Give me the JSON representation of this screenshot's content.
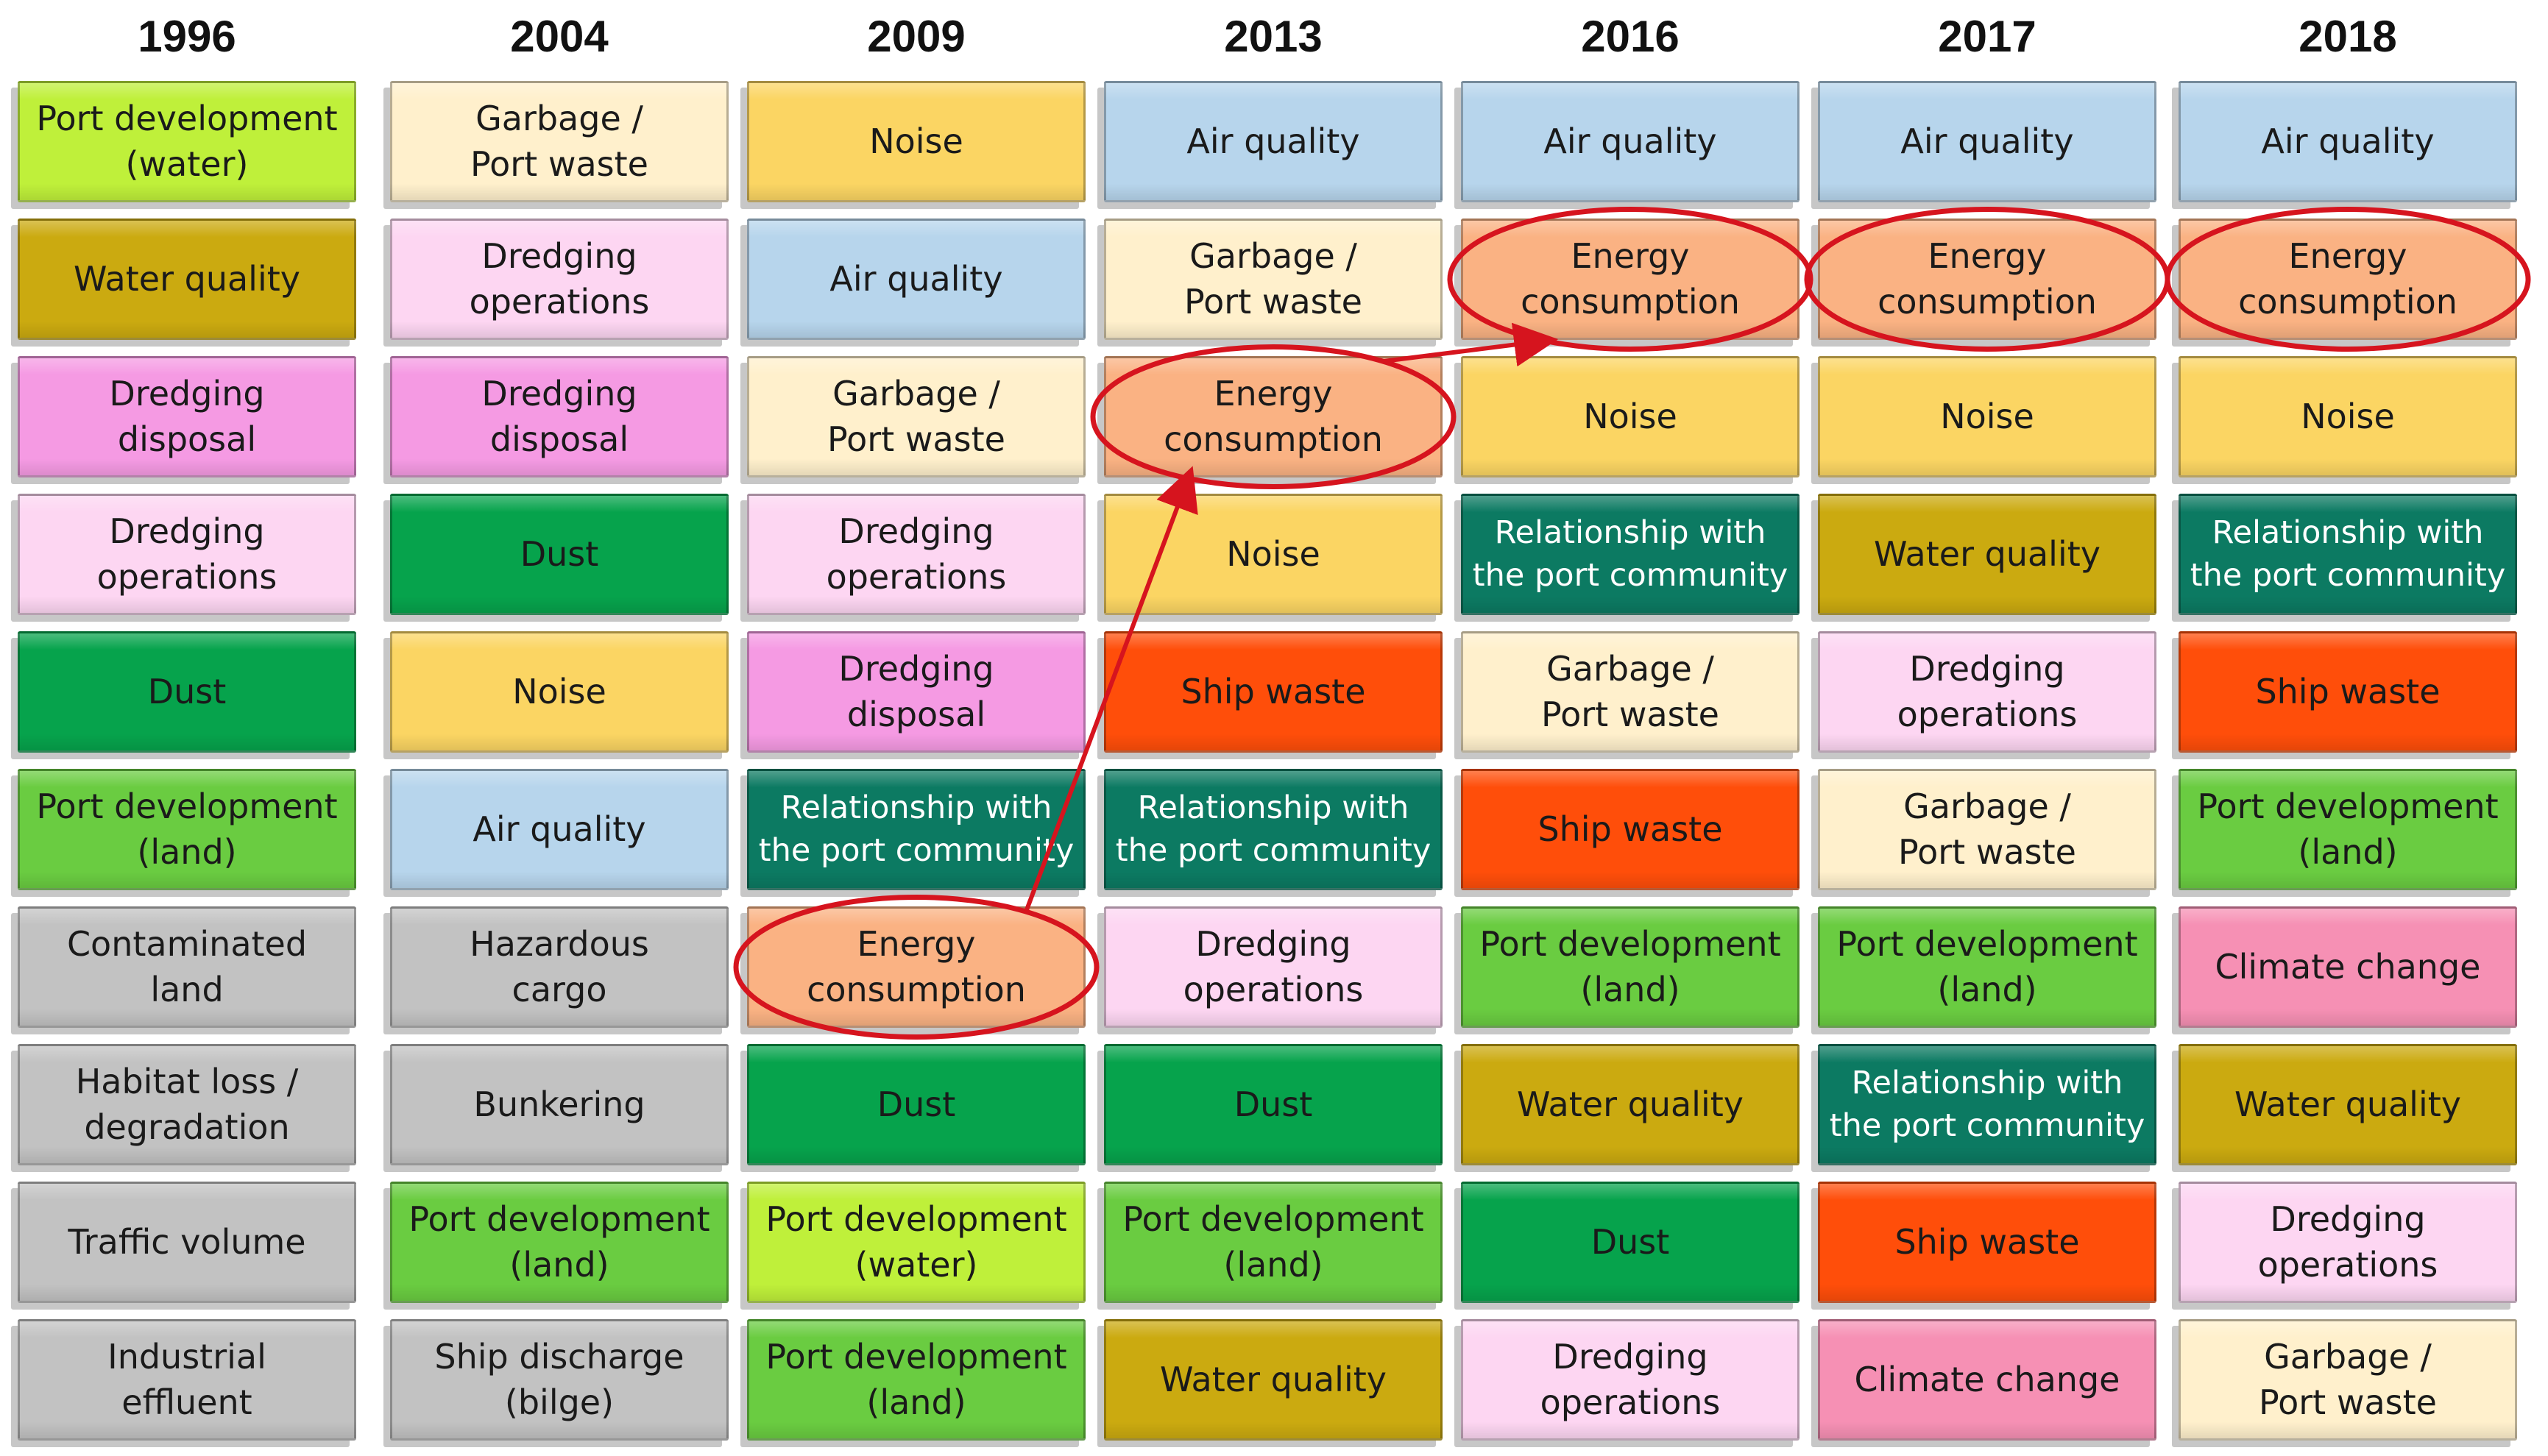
{
  "colors": {
    "air_quality": "#B7D5EC",
    "garbage_port_waste": "#FFF0CC",
    "noise": "#FBD563",
    "dredging_operations": "#FDD6F2",
    "dredging_disposal": "#F59AE3",
    "dust": "#06A34C",
    "relationship": "#0C7A62",
    "ship_waste": "#FF4E0A",
    "energy_consumption": "#FAB283",
    "port_dev_water": "#BFF03A",
    "port_dev_land": "#6ACC41",
    "water_quality": "#CBAA10",
    "grey": "#C2C2C2",
    "climate_change": "#F690B4",
    "highlight": "#D6141E"
  },
  "columns": [
    {
      "year": "1996",
      "items": [
        {
          "label": "Port development\n(water)",
          "color": "port_dev_water"
        },
        {
          "label": "Water quality",
          "color": "water_quality"
        },
        {
          "label": "Dredging\ndisposal",
          "color": "dredging_disposal"
        },
        {
          "label": "Dredging\noperations",
          "color": "dredging_operations"
        },
        {
          "label": "Dust",
          "color": "dust"
        },
        {
          "label": "Port development\n(land)",
          "color": "port_dev_land"
        },
        {
          "label": "Contaminated\nland",
          "color": "grey"
        },
        {
          "label": "Habitat loss /\ndegradation",
          "color": "grey"
        },
        {
          "label": "Traffic volume",
          "color": "grey"
        },
        {
          "label": "Industrial\neffluent",
          "color": "grey"
        }
      ]
    },
    {
      "year": "2004",
      "items": [
        {
          "label": "Garbage /\nPort waste",
          "color": "garbage_port_waste"
        },
        {
          "label": "Dredging\noperations",
          "color": "dredging_operations"
        },
        {
          "label": "Dredging\ndisposal",
          "color": "dredging_disposal"
        },
        {
          "label": "Dust",
          "color": "dust"
        },
        {
          "label": "Noise",
          "color": "noise"
        },
        {
          "label": "Air quality",
          "color": "air_quality"
        },
        {
          "label": "Hazardous\ncargo",
          "color": "grey"
        },
        {
          "label": "Bunkering",
          "color": "grey"
        },
        {
          "label": "Port development\n(land)",
          "color": "port_dev_land"
        },
        {
          "label": "Ship discharge\n(bilge)",
          "color": "grey"
        }
      ]
    },
    {
      "year": "2009",
      "items": [
        {
          "label": "Noise",
          "color": "noise"
        },
        {
          "label": "Air quality",
          "color": "air_quality"
        },
        {
          "label": "Garbage /\nPort waste",
          "color": "garbage_port_waste"
        },
        {
          "label": "Dredging\noperations",
          "color": "dredging_operations"
        },
        {
          "label": "Dredging\ndisposal",
          "color": "dredging_disposal"
        },
        {
          "label": "Relationship with\nthe port community",
          "color": "relationship"
        },
        {
          "label": "Energy\nconsumption",
          "color": "energy_consumption"
        },
        {
          "label": "Dust",
          "color": "dust"
        },
        {
          "label": "Port development\n(water)",
          "color": "port_dev_water"
        },
        {
          "label": "Port development\n(land)",
          "color": "port_dev_land"
        }
      ]
    },
    {
      "year": "2013",
      "items": [
        {
          "label": "Air quality",
          "color": "air_quality"
        },
        {
          "label": "Garbage /\nPort waste",
          "color": "garbage_port_waste"
        },
        {
          "label": "Energy\nconsumption",
          "color": "energy_consumption"
        },
        {
          "label": "Noise",
          "color": "noise"
        },
        {
          "label": "Ship waste",
          "color": "ship_waste"
        },
        {
          "label": "Relationship with\nthe port community",
          "color": "relationship"
        },
        {
          "label": "Dredging\noperations",
          "color": "dredging_operations"
        },
        {
          "label": "Dust",
          "color": "dust"
        },
        {
          "label": "Port development\n(land)",
          "color": "port_dev_land"
        },
        {
          "label": "Water quality",
          "color": "water_quality"
        }
      ]
    },
    {
      "year": "2016",
      "items": [
        {
          "label": "Air quality",
          "color": "air_quality"
        },
        {
          "label": "Energy\nconsumption",
          "color": "energy_consumption"
        },
        {
          "label": "Noise",
          "color": "noise"
        },
        {
          "label": "Relationship with\nthe port community",
          "color": "relationship"
        },
        {
          "label": "Garbage /\nPort waste",
          "color": "garbage_port_waste"
        },
        {
          "label": "Ship waste",
          "color": "ship_waste"
        },
        {
          "label": "Port development\n(land)",
          "color": "port_dev_land"
        },
        {
          "label": "Water quality",
          "color": "water_quality"
        },
        {
          "label": "Dust",
          "color": "dust"
        },
        {
          "label": "Dredging\noperations",
          "color": "dredging_operations"
        }
      ]
    },
    {
      "year": "2017",
      "items": [
        {
          "label": "Air quality",
          "color": "air_quality"
        },
        {
          "label": "Energy\nconsumption",
          "color": "energy_consumption"
        },
        {
          "label": "Noise",
          "color": "noise"
        },
        {
          "label": "Water quality",
          "color": "water_quality"
        },
        {
          "label": "Dredging\noperations",
          "color": "dredging_operations"
        },
        {
          "label": "Garbage /\nPort waste",
          "color": "garbage_port_waste"
        },
        {
          "label": "Port development\n(land)",
          "color": "port_dev_land"
        },
        {
          "label": "Relationship with\nthe port community",
          "color": "relationship"
        },
        {
          "label": "Ship waste",
          "color": "ship_waste"
        },
        {
          "label": "Climate change",
          "color": "climate_change"
        }
      ]
    },
    {
      "year": "2018",
      "items": [
        {
          "label": "Air quality",
          "color": "air_quality"
        },
        {
          "label": "Energy\nconsumption",
          "color": "energy_consumption"
        },
        {
          "label": "Noise",
          "color": "noise"
        },
        {
          "label": "Relationship with\nthe port community",
          "color": "relationship"
        },
        {
          "label": "Ship waste",
          "color": "ship_waste"
        },
        {
          "label": "Port development\n(land)",
          "color": "port_dev_land"
        },
        {
          "label": "Climate change",
          "color": "climate_change"
        },
        {
          "label": "Water quality",
          "color": "water_quality"
        },
        {
          "label": "Dredging\noperations",
          "color": "dredging_operations"
        },
        {
          "label": "Garbage /\nPort waste",
          "color": "garbage_port_waste"
        }
      ]
    }
  ],
  "highlighted_label": "Energy\nconsumption"
}
